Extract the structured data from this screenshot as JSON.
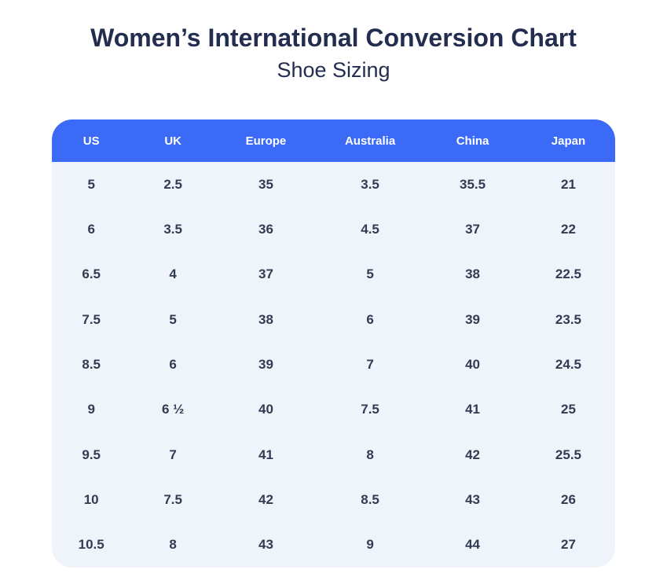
{
  "page": {
    "title": "Women’s International Conversion Chart",
    "subtitle": "Shoe Sizing"
  },
  "colors": {
    "header_bg": "#3a6af6",
    "header_text": "#ffffff",
    "body_bg": "#eff4fb",
    "heading_text": "#232d4f",
    "cell_text": "#323b52"
  },
  "chart_data": {
    "type": "table",
    "title": "Women’s International Conversion Chart",
    "subtitle": "Shoe Sizing",
    "columns": [
      "US",
      "UK",
      "Europe",
      "Australia",
      "China",
      "Japan"
    ],
    "rows": [
      [
        "5",
        "2.5",
        "35",
        "3.5",
        "35.5",
        "21"
      ],
      [
        "6",
        "3.5",
        "36",
        "4.5",
        "37",
        "22"
      ],
      [
        "6.5",
        "4",
        "37",
        "5",
        "38",
        "22.5"
      ],
      [
        "7.5",
        "5",
        "38",
        "6",
        "39",
        "23.5"
      ],
      [
        "8.5",
        "6",
        "39",
        "7",
        "40",
        "24.5"
      ],
      [
        "9",
        "6 ½",
        "40",
        "7.5",
        "41",
        "25"
      ],
      [
        "9.5",
        "7",
        "41",
        "8",
        "42",
        "25.5"
      ],
      [
        "10",
        "7.5",
        "42",
        "8.5",
        "43",
        "26"
      ],
      [
        "10.5",
        "8",
        "43",
        "9",
        "44",
        "27"
      ]
    ]
  }
}
